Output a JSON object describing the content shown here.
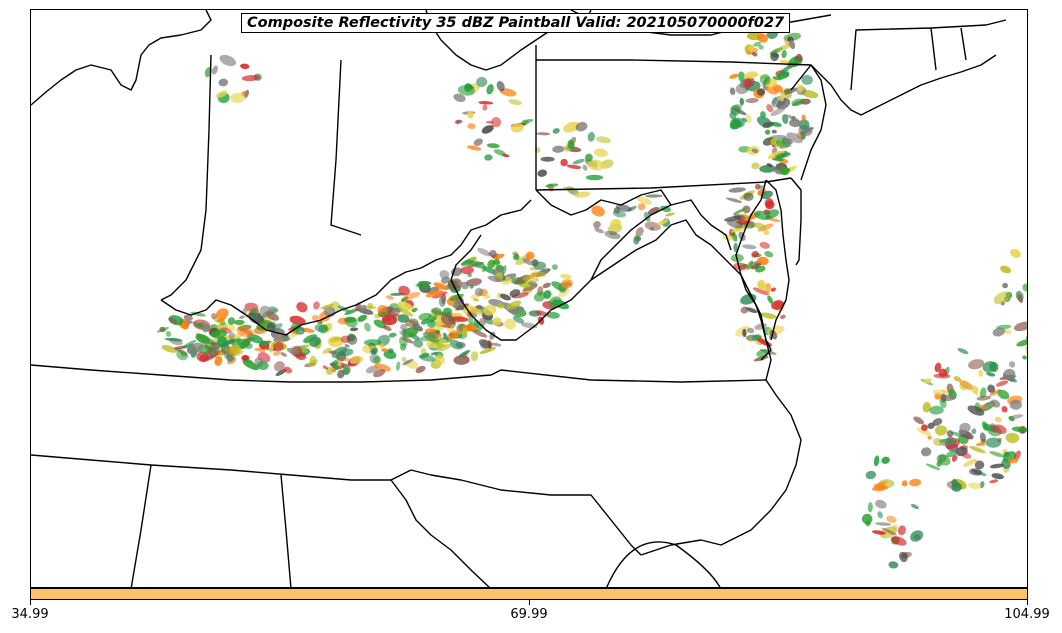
{
  "title": "Composite Reflectivity 35 dBZ Paintball Valid: 202105070000f027",
  "colorbar": {
    "color": "#ffc266",
    "ticks": [
      "34.99",
      "69.99",
      "104.99"
    ]
  },
  "paint_colors": [
    "#2ca02c",
    "#ff7f0e",
    "#d62728",
    "#8c564b",
    "#bcbd22",
    "#7f7f7f",
    "#4c4c4c",
    "#1f9e3a",
    "#e8d44d",
    "#2e8b57"
  ]
}
